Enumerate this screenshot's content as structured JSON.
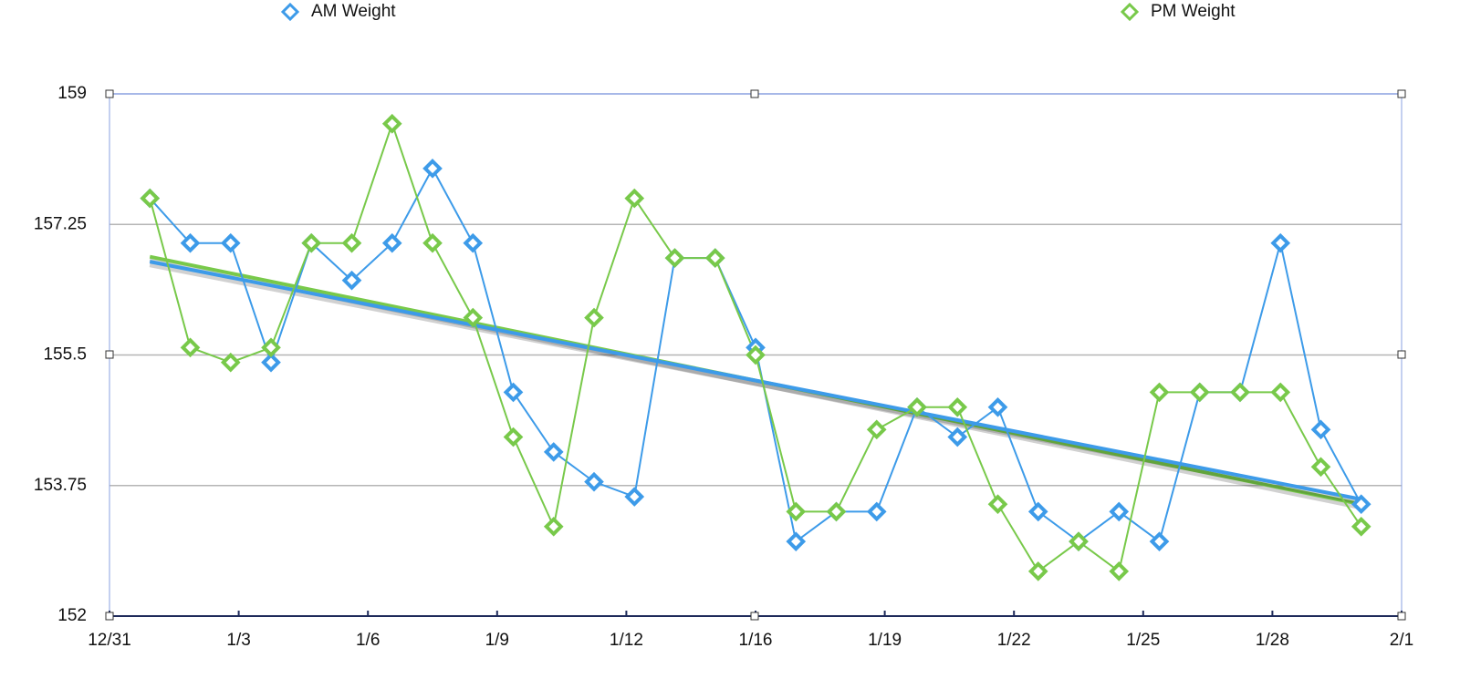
{
  "chart_data": {
    "type": "line",
    "xlim": [
      0,
      32
    ],
    "xticks": [
      {
        "value": 0,
        "label": "12/31"
      },
      {
        "value": 3.2,
        "label": "1/3"
      },
      {
        "value": 6.4,
        "label": "1/6"
      },
      {
        "value": 9.6,
        "label": "1/9"
      },
      {
        "value": 12.8,
        "label": "1/12"
      },
      {
        "value": 16,
        "label": "1/16"
      },
      {
        "value": 19.2,
        "label": "1/19"
      },
      {
        "value": 22.4,
        "label": "1/22"
      },
      {
        "value": 25.6,
        "label": "1/25"
      },
      {
        "value": 28.8,
        "label": "1/28"
      },
      {
        "value": 32,
        "label": "2/1"
      }
    ],
    "ylim": [
      152,
      159
    ],
    "yticks": [
      152,
      153.75,
      155.5,
      157.25,
      159
    ],
    "grid": true,
    "trendline": true,
    "x": [
      1,
      2,
      3,
      4,
      5,
      6,
      7,
      8,
      9,
      10,
      11,
      12,
      13,
      14,
      15,
      16,
      17,
      18,
      19,
      20,
      21,
      22,
      23,
      24,
      25,
      26,
      27,
      28,
      29,
      30,
      31
    ],
    "series": [
      {
        "name": "AM Weight",
        "color": "#3d9be9",
        "values": [
          157.6,
          157,
          157,
          155.4,
          157,
          156.5,
          157,
          158,
          157,
          155,
          154.2,
          153.8,
          153.6,
          156.8,
          156.8,
          155.6,
          153,
          153.4,
          153.4,
          154.8,
          154.4,
          154.8,
          153.4,
          153,
          153.4,
          153,
          155,
          155,
          157,
          154.5,
          153.5
        ]
      },
      {
        "name": "PM Weight",
        "color": "#78c94a",
        "values": [
          157.6,
          155.6,
          155.4,
          155.6,
          157,
          157,
          158.6,
          157,
          156,
          154.4,
          153.2,
          156,
          157.6,
          156.8,
          156.8,
          155.5,
          153.4,
          153.4,
          154.5,
          154.8,
          154.8,
          153.5,
          152.6,
          153,
          152.6,
          155,
          155,
          155,
          155,
          154,
          153.2
        ]
      }
    ]
  }
}
